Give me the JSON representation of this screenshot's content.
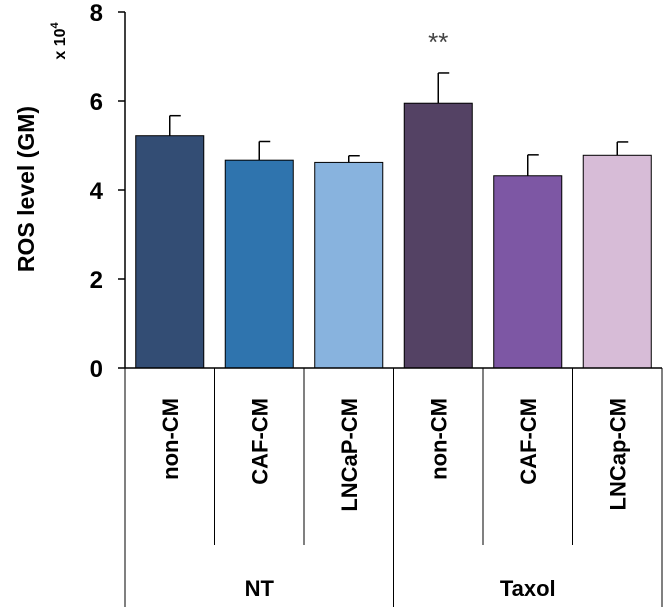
{
  "chart_data": {
    "type": "bar",
    "ylabel": "ROS level (GM)",
    "scale_label": "x 10",
    "scale_exponent": "4",
    "ylim": [
      0,
      8
    ],
    "yticks": [
      "0",
      "2",
      "4",
      "6",
      "8"
    ],
    "categories": [
      "non-CM",
      "CAF-CM",
      "LNCaP-CM",
      "non-CM",
      "CAF-CM",
      "LNCap-CM"
    ],
    "groups": [
      {
        "name": "NT",
        "span": [
          0,
          2
        ]
      },
      {
        "name": "Taxol",
        "span": [
          3,
          5
        ]
      }
    ],
    "values": [
      5.22,
      4.67,
      4.62,
      5.95,
      4.32,
      4.78
    ],
    "errors": [
      0.45,
      0.42,
      0.15,
      0.68,
      0.47,
      0.3
    ],
    "colors": [
      "#334d74",
      "#2f74ae",
      "#88b3de",
      "#544264",
      "#7d57a4",
      "#d7bcd7"
    ],
    "annotations": [
      {
        "bar": 3,
        "text": "**"
      }
    ],
    "grid": false
  }
}
